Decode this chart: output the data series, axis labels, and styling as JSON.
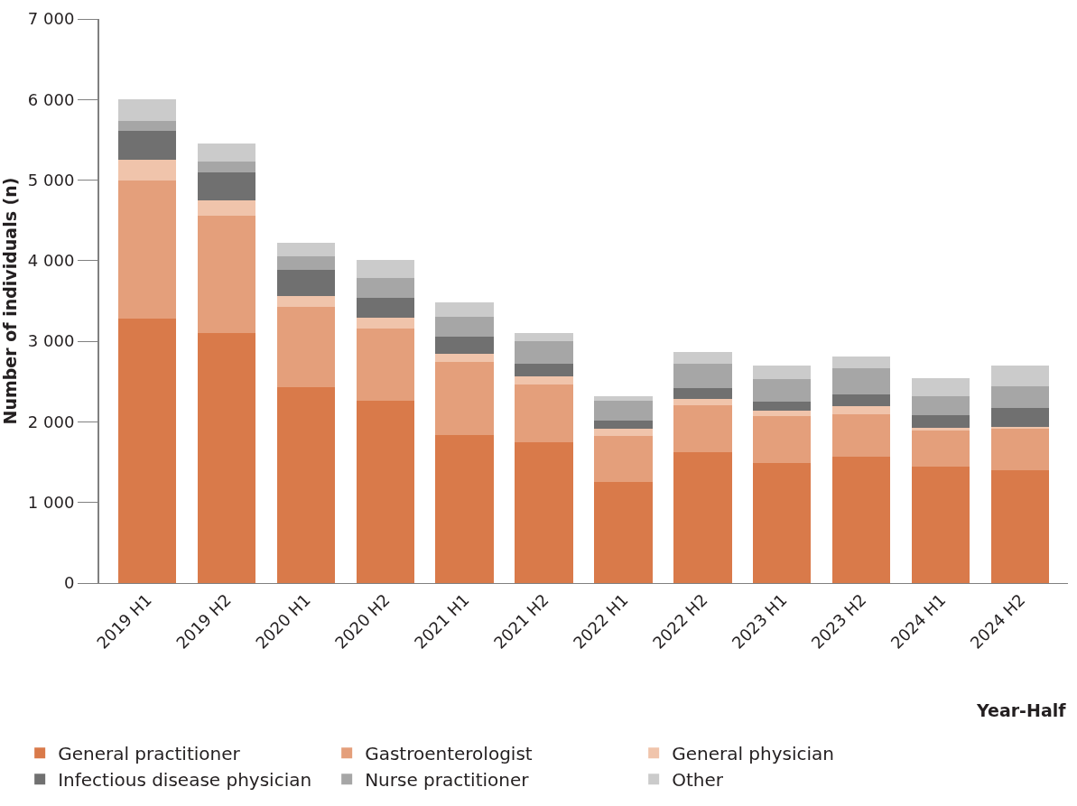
{
  "chart_data": {
    "type": "bar",
    "stacked": true,
    "xlabel": "Year-Half",
    "ylabel": "Number of individuals (n)",
    "categories": [
      "2019 H1",
      "2019 H2",
      "2020 H1",
      "2020 H2",
      "2021 H1",
      "2021 H2",
      "2022 H1",
      "2022 H2",
      "2023 H1",
      "2023 H2",
      "2024 H1",
      "2024 H2"
    ],
    "series": [
      {
        "name": "General practitioner",
        "color": "#d97a4a",
        "values": [
          3280,
          3100,
          2430,
          2260,
          1840,
          1750,
          1260,
          1620,
          1490,
          1570,
          1450,
          1400
        ]
      },
      {
        "name": "Gastroenterologist",
        "color": "#e49f7b",
        "values": [
          1720,
          1460,
          1000,
          900,
          900,
          710,
          570,
          590,
          580,
          530,
          440,
          510
        ]
      },
      {
        "name": "General physician",
        "color": "#f0c4ab",
        "values": [
          250,
          190,
          130,
          130,
          110,
          100,
          80,
          80,
          70,
          90,
          40,
          30
        ]
      },
      {
        "name": "Infectious disease physician",
        "color": "#707070",
        "values": [
          360,
          350,
          330,
          250,
          210,
          160,
          110,
          130,
          110,
          150,
          150,
          230
        ]
      },
      {
        "name": "Nurse practitioner",
        "color": "#a6a6a6",
        "values": [
          130,
          130,
          160,
          250,
          240,
          280,
          240,
          300,
          280,
          330,
          240,
          270
        ]
      },
      {
        "name": "Other",
        "color": "#cbcbcb",
        "values": [
          260,
          220,
          170,
          220,
          180,
          100,
          60,
          150,
          170,
          140,
          220,
          260
        ]
      }
    ],
    "ylim": [
      0,
      7000
    ],
    "yticks": [
      0,
      {
        "value": 1000,
        "label": "1 000"
      },
      {
        "value": 2000,
        "label": "2 000"
      },
      {
        "value": 3000,
        "label": "3 000"
      },
      {
        "value": 4000,
        "label": "4 000"
      },
      {
        "value": 5000,
        "label": "5 000"
      },
      {
        "value": 6000,
        "label": "6 000"
      },
      {
        "value": 7000,
        "label": "7 000"
      }
    ],
    "legend": "bottom"
  }
}
